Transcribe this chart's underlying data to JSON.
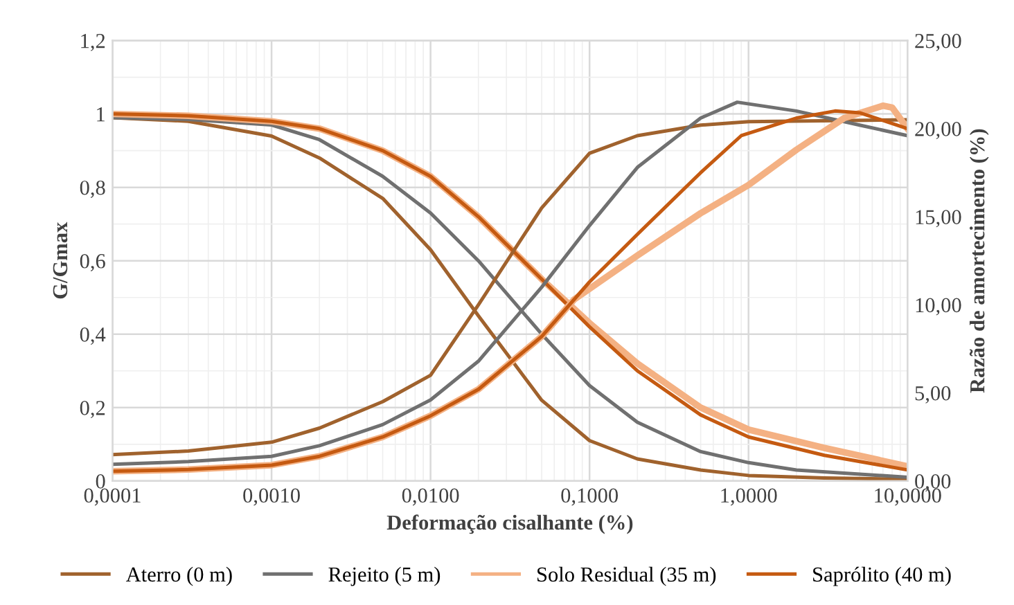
{
  "chart_data": {
    "type": "line",
    "xlabel": "Deformação cisalhante (%)",
    "ylabel": "G/Gmax",
    "y2label": "Razão de amortecimento (%)",
    "log": "x",
    "grid": true,
    "legend": "bottom",
    "marker": "none",
    "line_style": "solid",
    "xlim": [
      0.0001,
      10
    ],
    "xticks": [
      {
        "value": 0.0001,
        "label": "0,0001"
      },
      {
        "value": 0.001,
        "label": "0,0010"
      },
      {
        "value": 0.01,
        "label": "0,0100"
      },
      {
        "value": 0.1,
        "label": "0,1000"
      },
      {
        "value": 1,
        "label": "1,0000"
      },
      {
        "value": 10,
        "label": "10,0000"
      }
    ],
    "ylim": [
      0,
      1.2
    ],
    "yticks": [
      0,
      {
        "value": 0.2,
        "label": "0,2"
      },
      {
        "value": 0.4,
        "label": "0,4"
      },
      {
        "value": 0.6,
        "label": "0,6"
      },
      {
        "value": 0.8,
        "label": "0,8"
      },
      1,
      {
        "value": 1.2,
        "label": "1,2"
      }
    ],
    "y2lim": [
      0,
      25
    ],
    "y2ticks": [
      {
        "value": 0,
        "label": "0,00"
      },
      {
        "value": 5,
        "label": "5,00"
      },
      {
        "value": 10,
        "label": "10,00"
      },
      {
        "value": 15,
        "label": "15,00"
      },
      {
        "value": 20,
        "label": "20,00"
      },
      {
        "value": 25,
        "label": "25,00"
      }
    ],
    "series": [
      {
        "name": "Aterro (0 m)",
        "color": "#a0622d",
        "x": [
          0.0001,
          0.0003,
          0.001,
          0.002,
          0.005,
          0.01,
          0.02,
          0.05,
          0.1,
          0.2,
          0.5,
          1,
          3,
          10
        ],
        "values": [
          0.99,
          0.98,
          0.94,
          0.88,
          0.77,
          0.63,
          0.45,
          0.22,
          0.11,
          0.06,
          0.03,
          0.015,
          0.008,
          0.005
        ]
      },
      {
        "name": "Rejeito (5 m)",
        "color": "#707070",
        "x": [
          0.0001,
          0.0003,
          0.001,
          0.002,
          0.005,
          0.01,
          0.02,
          0.05,
          0.1,
          0.2,
          0.5,
          1,
          2,
          10
        ],
        "values": [
          0.99,
          0.985,
          0.97,
          0.93,
          0.83,
          0.73,
          0.6,
          0.4,
          0.26,
          0.16,
          0.08,
          0.05,
          0.03,
          0.01
        ]
      },
      {
        "name": "Solo Residual (35 m)",
        "color": "#f4b183",
        "x": [
          0.0001,
          0.0003,
          0.001,
          0.002,
          0.005,
          0.01,
          0.02,
          0.05,
          0.1,
          0.2,
          0.5,
          1,
          3,
          10
        ],
        "values": [
          1.0,
          0.995,
          0.98,
          0.96,
          0.9,
          0.83,
          0.72,
          0.55,
          0.43,
          0.32,
          0.2,
          0.14,
          0.09,
          0.04
        ]
      },
      {
        "name": "Saprólito (40 m)",
        "color": "#c55a11",
        "x": [
          0.0001,
          0.0003,
          0.001,
          0.002,
          0.005,
          0.01,
          0.02,
          0.05,
          0.1,
          0.2,
          0.5,
          1,
          3,
          10
        ],
        "values": [
          1.0,
          0.995,
          0.98,
          0.96,
          0.9,
          0.83,
          0.72,
          0.55,
          0.42,
          0.3,
          0.18,
          0.12,
          0.07,
          0.03
        ]
      },
      {
        "color": "#a0622d",
        "axis": "y2",
        "x": [
          0.0001,
          0.0003,
          0.001,
          0.002,
          0.005,
          0.01,
          0.02,
          0.05,
          0.1,
          0.2,
          0.5,
          1,
          10
        ],
        "values": [
          1.5,
          1.7,
          2.2,
          3.0,
          4.5,
          6.0,
          10.0,
          15.5,
          18.6,
          19.6,
          20.2,
          20.4,
          20.5
        ]
      },
      {
        "color": "#707070",
        "axis": "y2",
        "x": [
          0.0001,
          0.0003,
          0.001,
          0.002,
          0.005,
          0.01,
          0.02,
          0.05,
          0.1,
          0.2,
          0.5,
          0.85,
          2,
          5,
          10
        ],
        "values": [
          0.95,
          1.1,
          1.4,
          2.0,
          3.2,
          4.6,
          6.8,
          11.0,
          14.5,
          17.8,
          20.6,
          21.5,
          21.0,
          20.2,
          19.6
        ]
      },
      {
        "color": "#f4b183",
        "axis": "y2",
        "x": [
          0.0001,
          0.0003,
          0.001,
          0.002,
          0.005,
          0.01,
          0.02,
          0.05,
          0.08,
          0.2,
          0.5,
          1,
          2,
          4,
          7,
          8,
          10
        ],
        "values": [
          0.55,
          0.65,
          0.9,
          1.4,
          2.5,
          3.7,
          5.2,
          8.2,
          10.3,
          12.8,
          15.2,
          16.8,
          18.8,
          20.6,
          21.3,
          21.2,
          20.0
        ]
      },
      {
        "color": "#c55a11",
        "axis": "y2",
        "x": [
          0.0001,
          0.0003,
          0.001,
          0.002,
          0.005,
          0.01,
          0.02,
          0.05,
          0.1,
          0.2,
          0.5,
          0.9,
          2,
          3.5,
          5,
          10
        ],
        "values": [
          0.55,
          0.65,
          0.9,
          1.4,
          2.5,
          3.7,
          5.2,
          8.2,
          11.3,
          14.0,
          17.5,
          19.6,
          20.6,
          21.0,
          20.9,
          20.0
        ]
      }
    ]
  }
}
